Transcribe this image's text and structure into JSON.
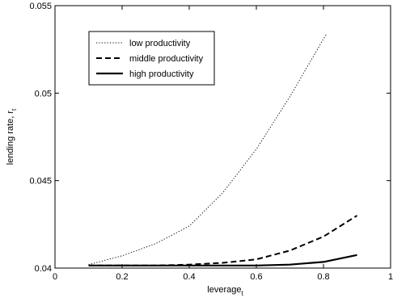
{
  "chart_data": {
    "type": "line",
    "xlabel": "leverage",
    "xlabel_sub": "t",
    "ylabel": "lending rate, r",
    "ylabel_sub": "t",
    "xlim": [
      0,
      1
    ],
    "ylim": [
      0.04,
      0.055
    ],
    "x_ticks": [
      0,
      0.2,
      0.4,
      0.6,
      0.8,
      1
    ],
    "x_tick_labels": [
      "0",
      "0.2",
      "0.4",
      "0.6",
      "0.8",
      "1"
    ],
    "y_ticks": [
      0.04,
      0.045,
      0.05,
      0.055
    ],
    "y_tick_labels": [
      "0.04",
      "0.045",
      "0.05",
      "0.055"
    ],
    "grid": false,
    "legend_position": "top-left",
    "series": [
      {
        "name": "low productivity",
        "style": "dotted",
        "color": "#000000",
        "x": [
          0.1,
          0.2,
          0.3,
          0.4,
          0.5,
          0.6,
          0.7,
          0.8,
          0.81
        ],
        "y": [
          0.0402,
          0.0407,
          0.0414,
          0.0424,
          0.0443,
          0.0468,
          0.0498,
          0.0531,
          0.0534
        ]
      },
      {
        "name": "middle productivity",
        "style": "dashed",
        "color": "#000000",
        "x": [
          0.1,
          0.2,
          0.3,
          0.4,
          0.5,
          0.6,
          0.7,
          0.8,
          0.9
        ],
        "y": [
          0.04015,
          0.04015,
          0.04015,
          0.0402,
          0.0403,
          0.0405,
          0.041,
          0.0418,
          0.043
        ]
      },
      {
        "name": "high productivity",
        "style": "solid",
        "color": "#000000",
        "x": [
          0.1,
          0.2,
          0.3,
          0.4,
          0.5,
          0.6,
          0.7,
          0.8,
          0.9
        ],
        "y": [
          0.04015,
          0.04015,
          0.04015,
          0.04015,
          0.04015,
          0.04015,
          0.0402,
          0.04035,
          0.04075
        ]
      }
    ]
  }
}
